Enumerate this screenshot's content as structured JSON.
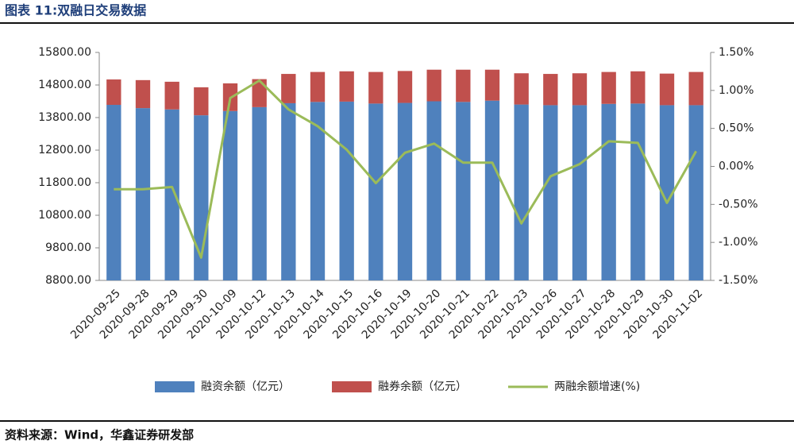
{
  "chart_data": {
    "type": "bar",
    "stacked": true,
    "title": "图表 11:双融日交易数据",
    "source": "资料来源：Wind，华鑫证券研发部",
    "categories": [
      "2020-09-25",
      "2020-09-28",
      "2020-09-29",
      "2020-09-30",
      "2020-10-09",
      "2020-10-12",
      "2020-10-13",
      "2020-10-14",
      "2020-10-15",
      "2020-10-16",
      "2020-10-19",
      "2020-10-20",
      "2020-10-21",
      "2020-10-22",
      "2020-10-23",
      "2020-10-26",
      "2020-10-27",
      "2020-10-28",
      "2020-10-29",
      "2020-10-30",
      "2020-11-02"
    ],
    "series": [
      {
        "name": "融资余额（亿元）",
        "color": "#4f81bd",
        "values": [
          14190,
          14090,
          14050,
          13870,
          14000,
          14120,
          14240,
          14280,
          14290,
          14230,
          14250,
          14300,
          14280,
          14320,
          14200,
          14180,
          14180,
          14220,
          14230,
          14180,
          14180
        ]
      },
      {
        "name": "融券余额（亿元）",
        "color": "#c0504d",
        "values": [
          780,
          860,
          850,
          860,
          850,
          860,
          900,
          920,
          930,
          970,
          980,
          970,
          990,
          950,
          960,
          960,
          980,
          980,
          990,
          970,
          1020
        ]
      },
      {
        "name": "两融余额增速(%)",
        "color": "#9bbb59",
        "axis": "y2",
        "values": [
          -0.3,
          -0.3,
          -0.27,
          -1.2,
          0.9,
          1.13,
          0.75,
          0.53,
          0.22,
          -0.22,
          0.18,
          0.3,
          0.05,
          0.05,
          -0.75,
          -0.13,
          0.03,
          0.33,
          0.31,
          -0.48,
          0.2
        ]
      }
    ],
    "ylim": [
      8800,
      15800
    ],
    "yticks": [
      {
        "value": 8800,
        "label": "8800.00"
      },
      {
        "value": 9800,
        "label": "9800.00"
      },
      {
        "value": 10800,
        "label": "10800.00"
      },
      {
        "value": 11800,
        "label": "11800.00"
      },
      {
        "value": 12800,
        "label": "12800.00"
      },
      {
        "value": 13800,
        "label": "13800.00"
      },
      {
        "value": 14800,
        "label": "14800.00"
      },
      {
        "value": 15800,
        "label": "15800.00"
      }
    ],
    "y2lim": [
      -1.5,
      1.5
    ],
    "y2ticks": [
      {
        "value": -1.5,
        "label": "-1.50%"
      },
      {
        "value": -1.0,
        "label": "-1.00%"
      },
      {
        "value": -0.5,
        "label": "-0.50%"
      },
      {
        "value": 0,
        "label": "0.00%"
      },
      {
        "value": 0.5,
        "label": "0.50%"
      },
      {
        "value": 1.0,
        "label": "1.00%"
      },
      {
        "value": 1.5,
        "label": "1.50%"
      }
    ],
    "legend": "bottom"
  }
}
